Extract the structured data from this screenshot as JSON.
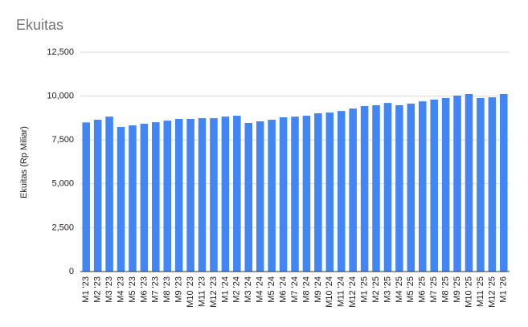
{
  "chart_data": {
    "type": "bar",
    "title": "Ekuitas",
    "y_label": "Ekuitas (Rp Miliar)",
    "categories": [
      "M1 '23",
      "M2 '23",
      "M3 '23",
      "M4 '23",
      "M5 '23",
      "M6 '23",
      "M7 '23",
      "M8 '23",
      "M9 '23",
      "M10 '23",
      "M11 '23",
      "M12 '23",
      "M1 '24",
      "M2 '24",
      "M3 '24",
      "M4 '24",
      "M5 '24",
      "M6 '24",
      "M7 '24",
      "M8 '24",
      "M9 '24",
      "M10 '24",
      "M11 '24",
      "M12 '24",
      "M1 '25",
      "M2 '25",
      "M3 '25",
      "M4 '25",
      "M5 '25",
      "M6 '25",
      "M7 '25",
      "M8 '25",
      "M9 '25",
      "M10 '25",
      "M11 '25",
      "M12 '25",
      "M1 '26"
    ],
    "values": [
      8500,
      8650,
      8830,
      8240,
      8330,
      8420,
      8510,
      8600,
      8700,
      8700,
      8740,
      8740,
      8830,
      8880,
      8470,
      8560,
      8650,
      8790,
      8830,
      8880,
      9020,
      9060,
      9150,
      9290,
      9430,
      9480,
      9610,
      9480,
      9570,
      9700,
      9800,
      9890,
      10030,
      10120,
      9890,
      9930,
      10120
    ],
    "color": "#4285f4",
    "ylim": [
      0,
      12500
    ],
    "yticks": [
      0,
      {
        "value": 2500,
        "label": "2,500"
      },
      {
        "value": 5000,
        "label": "5,000"
      },
      {
        "value": 7500,
        "label": "7,500"
      },
      {
        "value": 10000,
        "label": "10,000"
      },
      {
        "value": 12500,
        "label": "12,500"
      }
    ],
    "grid": true
  }
}
